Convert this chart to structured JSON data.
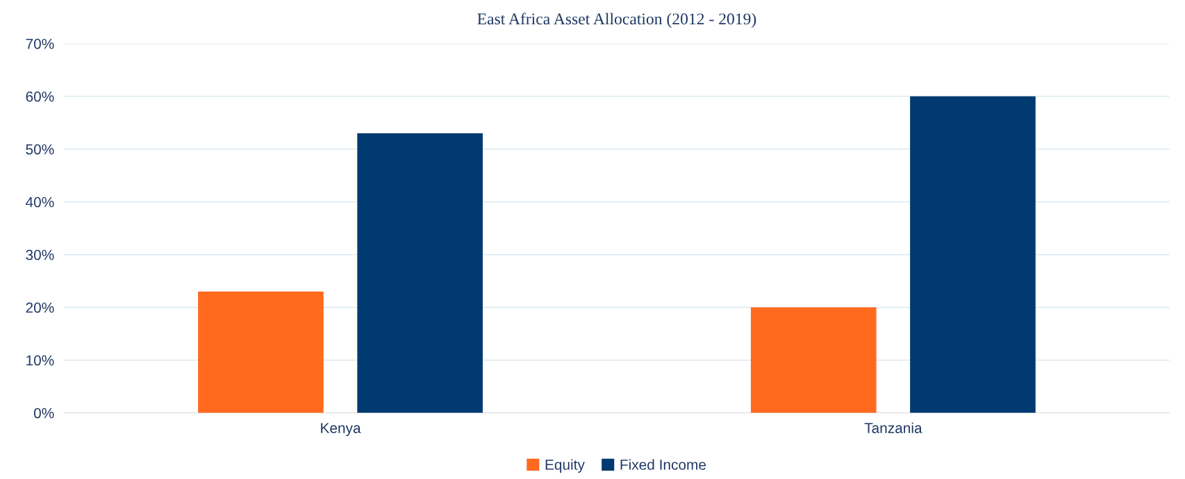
{
  "chart_data": {
    "type": "bar",
    "title": "East Africa Asset Allocation (2012 - 2019)",
    "categories": [
      "Kenya",
      "Tanzania"
    ],
    "series": [
      {
        "name": "Equity",
        "color": "#ff6a1f",
        "values": [
          23,
          20
        ]
      },
      {
        "name": "Fixed Income",
        "color": "#003a70",
        "values": [
          53,
          60
        ]
      }
    ],
    "ylim": [
      0,
      70
    ],
    "yticks": [
      {
        "value": 0,
        "label": "0%"
      },
      {
        "value": 10,
        "label": "10%"
      },
      {
        "value": 20,
        "label": "20%"
      },
      {
        "value": 30,
        "label": "30%"
      },
      {
        "value": 40,
        "label": "40%"
      },
      {
        "value": 50,
        "label": "50%"
      },
      {
        "value": 60,
        "label": "60%"
      },
      {
        "value": 70,
        "label": "70%"
      }
    ],
    "grid": "y",
    "legend": "bottom"
  }
}
